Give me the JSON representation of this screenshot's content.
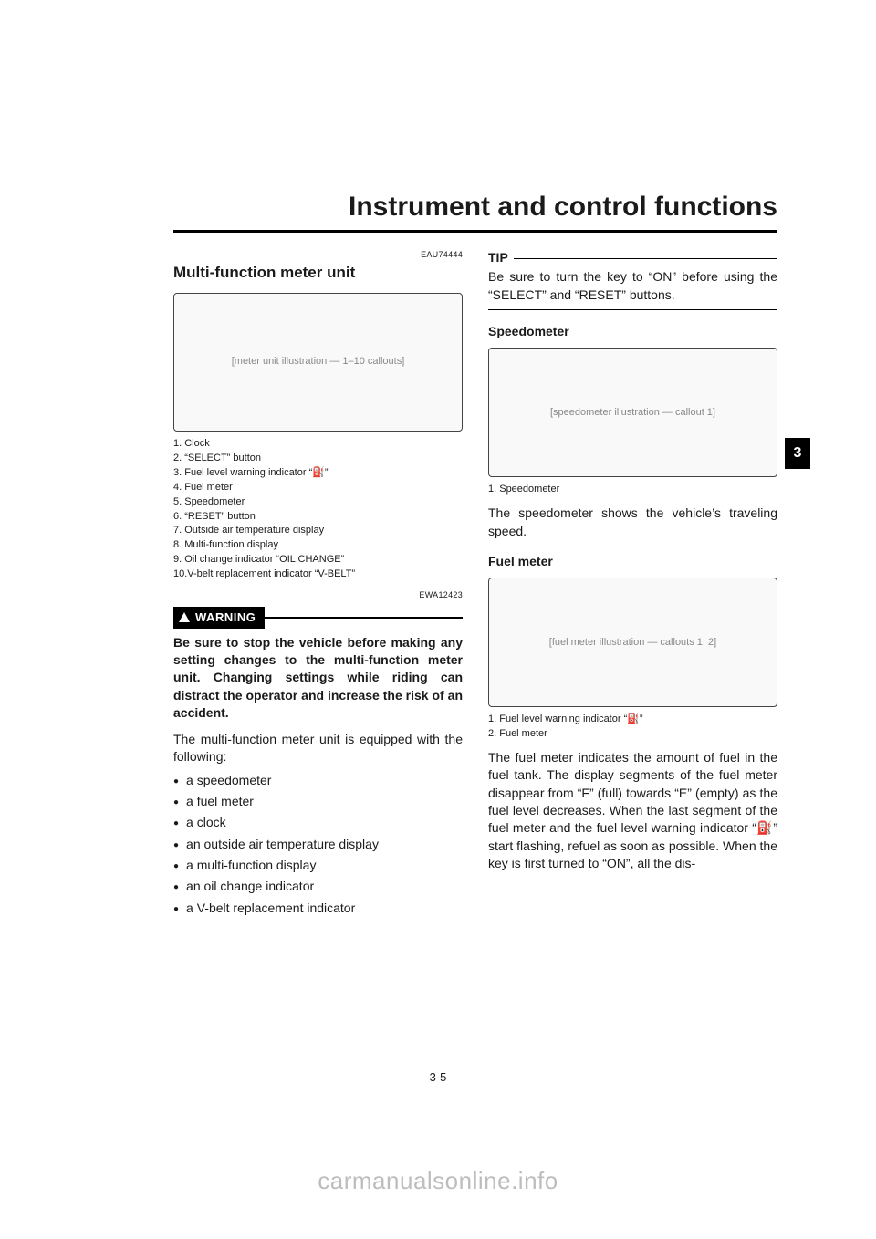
{
  "chapter_title": "Instrument and control functions",
  "side_tab": "3",
  "page_number": "3-5",
  "watermark": "carmanualsonline.info",
  "left": {
    "code1": "EAU74444",
    "h1": "Multi-function meter unit",
    "fig1_placeholder": "[meter unit illustration — 1–10 callouts]",
    "captions1": [
      "1. Clock",
      "2. “SELECT” button",
      "3. Fuel level warning indicator “⛽”",
      "4. Fuel meter",
      "5. Speedometer",
      "6. “RESET” button",
      "7. Outside air temperature display",
      "8. Multi-function display",
      "9. Oil change indicator “OIL CHANGE”",
      "10.V-belt replacement indicator “V-BELT”"
    ],
    "code2": "EWA12423",
    "warning_label": "WARNING",
    "warning_text": "Be sure to stop the vehicle before making any setting changes to the multi-function meter unit. Changing settings while riding can distract the operator and increase the risk of an accident.",
    "intro": "The multi-function meter unit is equipped with the following:",
    "bullets": [
      "a speedometer",
      "a fuel meter",
      "a clock",
      "an outside air temperature display",
      "a multi-function display",
      "an oil change indicator",
      "a V-belt replacement indicator"
    ]
  },
  "right": {
    "tip_label": "TIP",
    "tip_text": "Be sure to turn the key to “ON” before using the “SELECT” and “RESET” buttons.",
    "speed_head": "Speedometer",
    "fig2_placeholder": "[speedometer illustration — callout 1]",
    "captions2": [
      "1. Speedometer"
    ],
    "speed_text": "The speedometer shows the vehicle’s traveling speed.",
    "fuel_head": "Fuel meter",
    "fig3_placeholder": "[fuel meter illustration — callouts 1, 2]",
    "captions3": [
      "1. Fuel level warning indicator “⛽”",
      "2. Fuel meter"
    ],
    "fuel_text": "The fuel meter indicates the amount of fuel in the fuel tank. The display segments of the fuel meter disappear from “F” (full) towards “E” (empty) as the fuel level decreases. When the last segment of the fuel meter and the fuel level warning indicator “⛽” start flashing, refuel as soon as possible. When the key is first turned to “ON”, all the dis-"
  }
}
